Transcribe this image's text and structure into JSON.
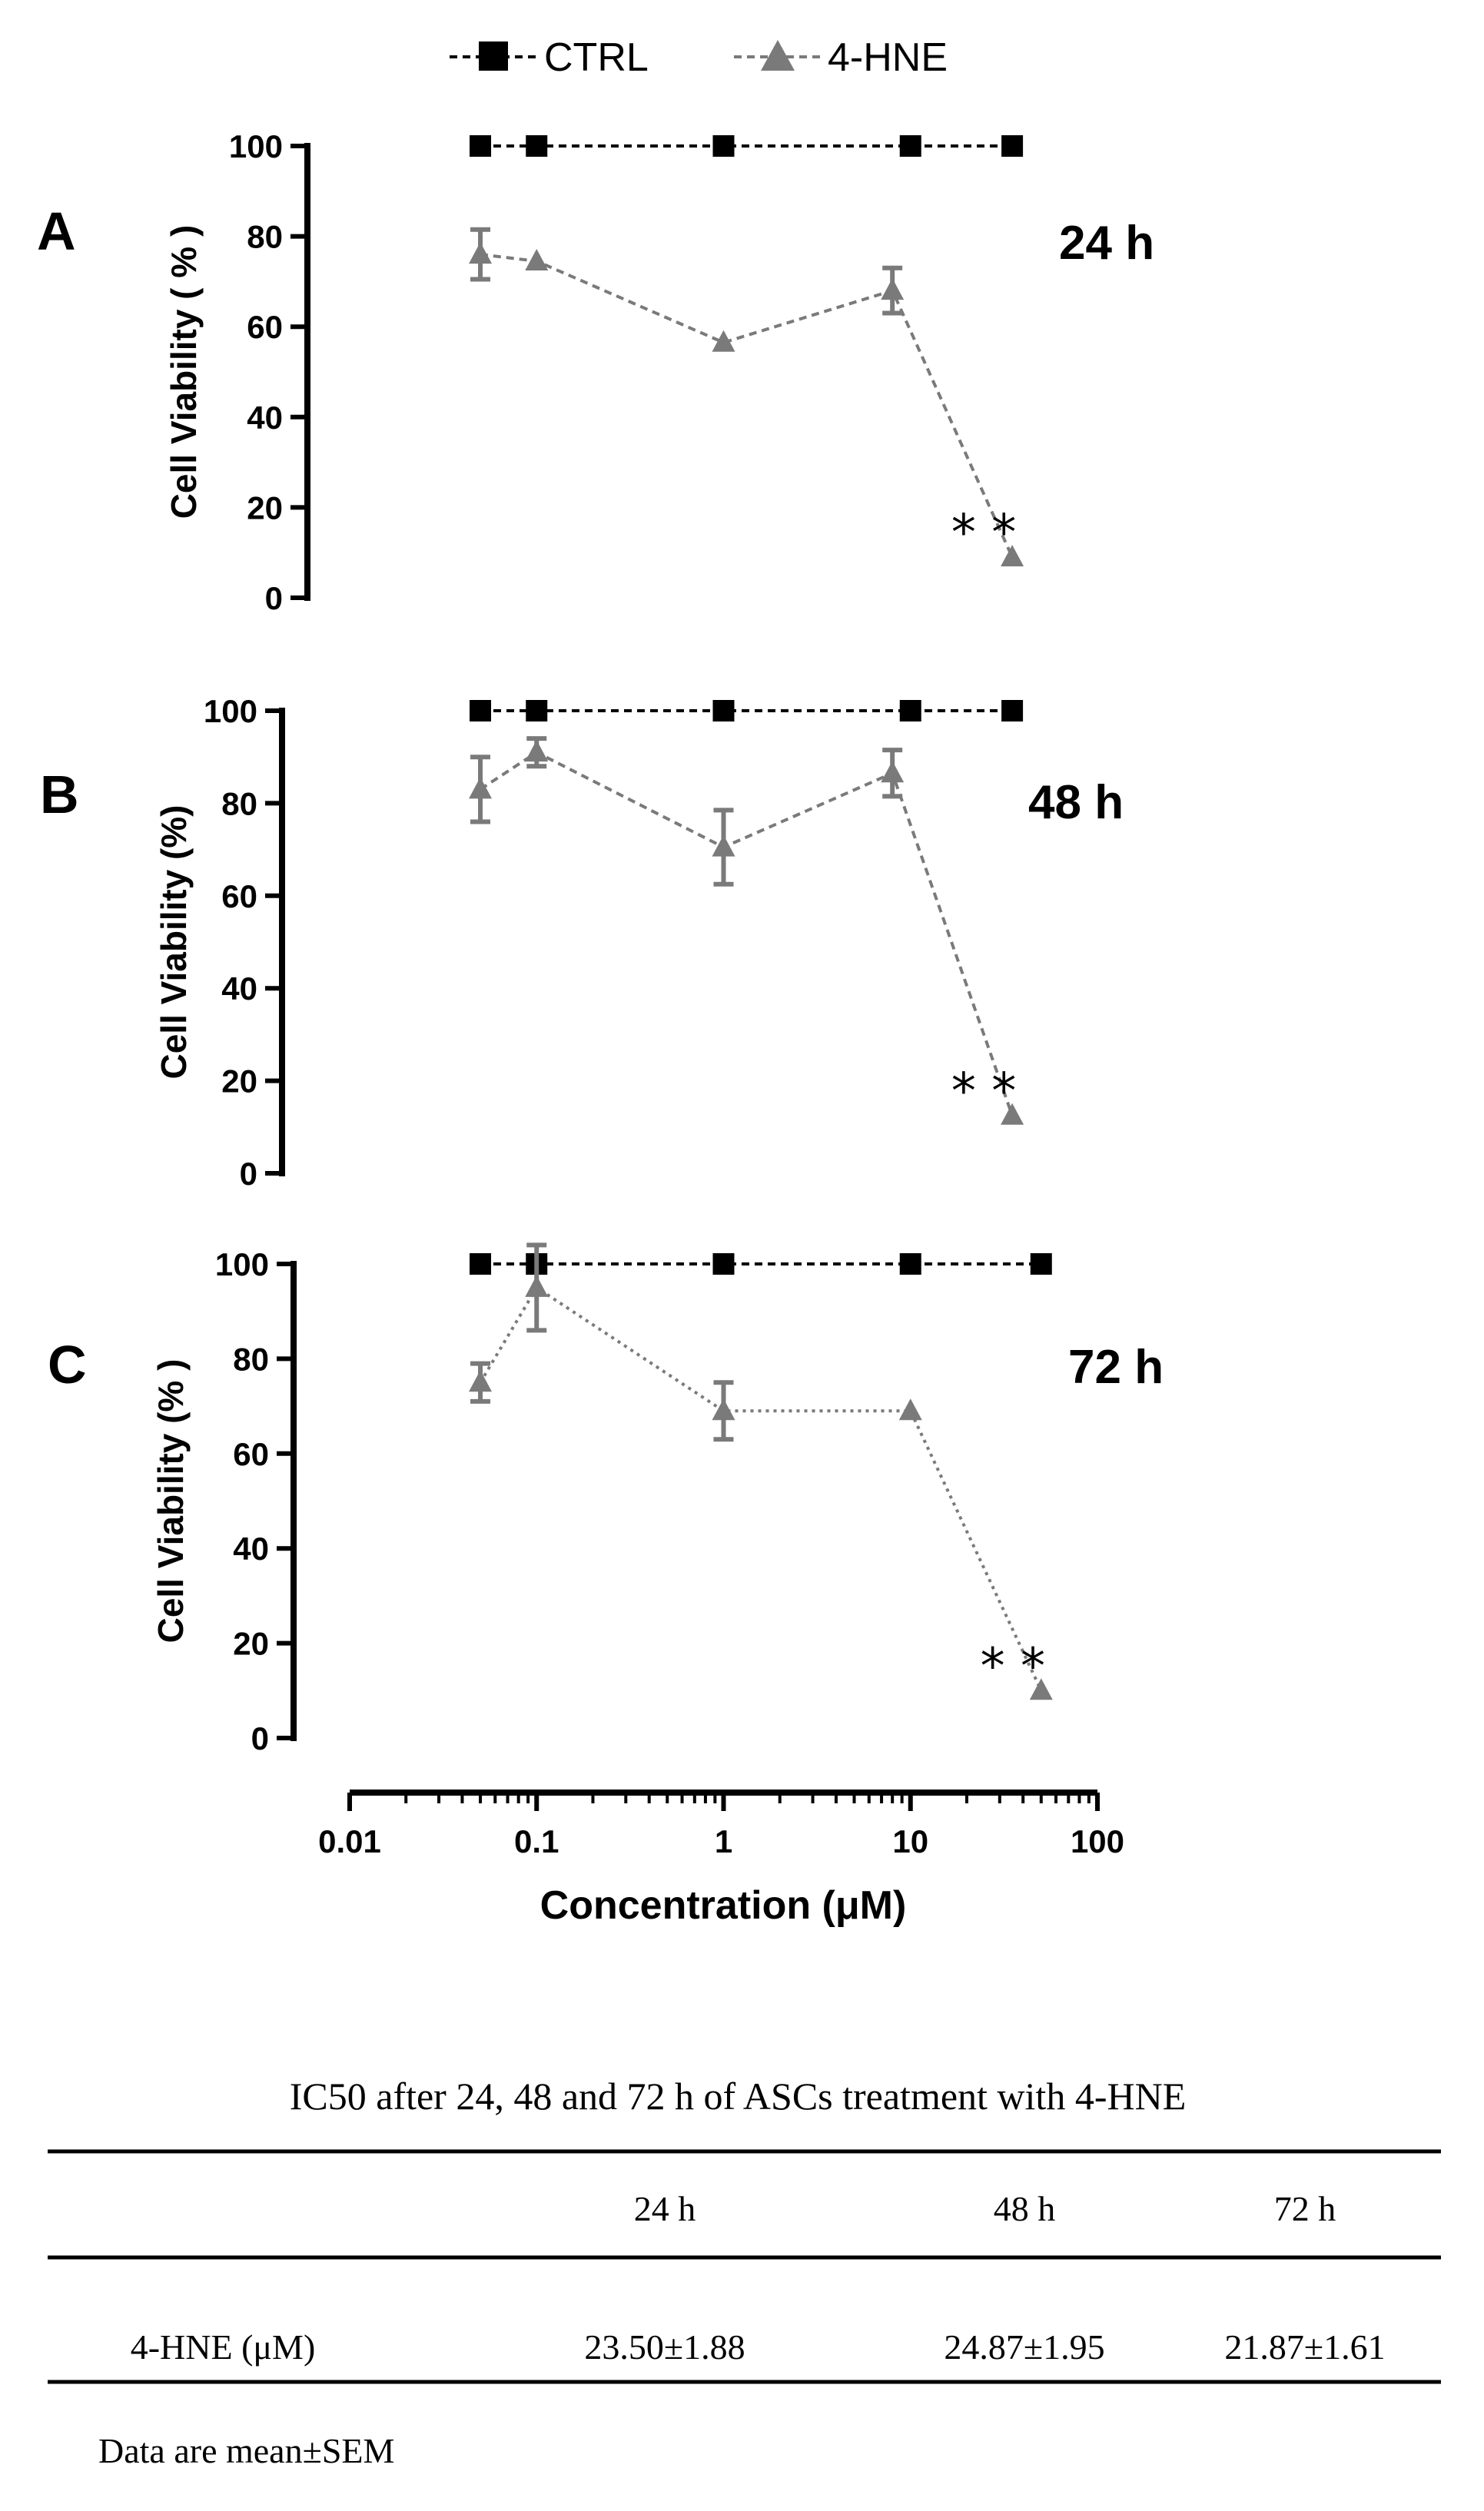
{
  "legend": {
    "ctrl_label": "CTRL",
    "hne_label": "4-HNE"
  },
  "colors": {
    "ctrl": "#000000",
    "hne": "#7a7a7a"
  },
  "x_axis": {
    "label": "Concentration (μM)",
    "scale": "log",
    "xlim": [
      0.01,
      100
    ],
    "tick_labels": [
      "0.01",
      "0.1",
      "1",
      "10",
      "100"
    ],
    "tick_values": [
      0.01,
      0.1,
      1,
      10,
      100
    ]
  },
  "chart_data": [
    {
      "type": "line",
      "panel": "A",
      "time_label": "24 h",
      "ylabel": "Cell Viability ( % )",
      "ylim": [
        0,
        100
      ],
      "yticks": [
        "0",
        "20",
        "40",
        "60",
        "80",
        "100"
      ],
      "significance": "* *",
      "series": [
        {
          "name": "CTRL",
          "x": [
            0.05,
            0.1,
            1,
            10,
            35
          ],
          "values": [
            100,
            100,
            100,
            100,
            100
          ],
          "errors": [
            0,
            0,
            0,
            0,
            0
          ]
        },
        {
          "name": "4-HNE",
          "x": [
            0.05,
            0.1,
            1,
            8,
            35
          ],
          "values": [
            76,
            74.5,
            56.5,
            68,
            9
          ],
          "errors": [
            5.5,
            0,
            0,
            5,
            0
          ]
        }
      ]
    },
    {
      "type": "line",
      "panel": "B",
      "time_label": "48 h",
      "ylabel": "Cell Viability (%)",
      "ylim": [
        0,
        100
      ],
      "yticks": [
        "0",
        "20",
        "40",
        "60",
        "80",
        "100"
      ],
      "significance": "* *",
      "series": [
        {
          "name": "CTRL",
          "x": [
            0.05,
            0.1,
            1,
            10,
            35
          ],
          "values": [
            100,
            100,
            100,
            100,
            100
          ],
          "errors": [
            0,
            0,
            0,
            0,
            0
          ]
        },
        {
          "name": "4-HNE",
          "x": [
            0.05,
            0.1,
            1,
            8,
            35
          ],
          "values": [
            83,
            91,
            70.5,
            86.5,
            12.5
          ],
          "errors": [
            7,
            3,
            8,
            5,
            0
          ]
        }
      ]
    },
    {
      "type": "line",
      "panel": "C",
      "time_label": "72 h",
      "ylabel": "Cell Viability (% )",
      "ylim": [
        0,
        100
      ],
      "yticks": [
        "0",
        "20",
        "40",
        "60",
        "80",
        "100"
      ],
      "significance": "* *",
      "series": [
        {
          "name": "CTRL",
          "x": [
            0.05,
            0.1,
            1,
            10,
            50
          ],
          "values": [
            100,
            100,
            100,
            100,
            100
          ],
          "errors": [
            0,
            0,
            0,
            0,
            0
          ]
        },
        {
          "name": "4-HNE",
          "x": [
            0.05,
            0.1,
            1,
            10,
            50
          ],
          "values": [
            75,
            95,
            69,
            69,
            10
          ],
          "errors": [
            4,
            9,
            6,
            0,
            0
          ]
        }
      ]
    },
    {
      "type": "table",
      "title": "IC50 after 24, 48 and 72 h of ASCs  treatment with 4-HNE",
      "columns": [
        "",
        "24 h",
        "48 h",
        "72 h"
      ],
      "rows": [
        {
          "label": "4-HNE (μM)",
          "values": [
            "23.50±1.88",
            "24.87±1.95",
            "21.87±1.61"
          ]
        }
      ],
      "footnote": "Data are mean±SEM"
    }
  ]
}
